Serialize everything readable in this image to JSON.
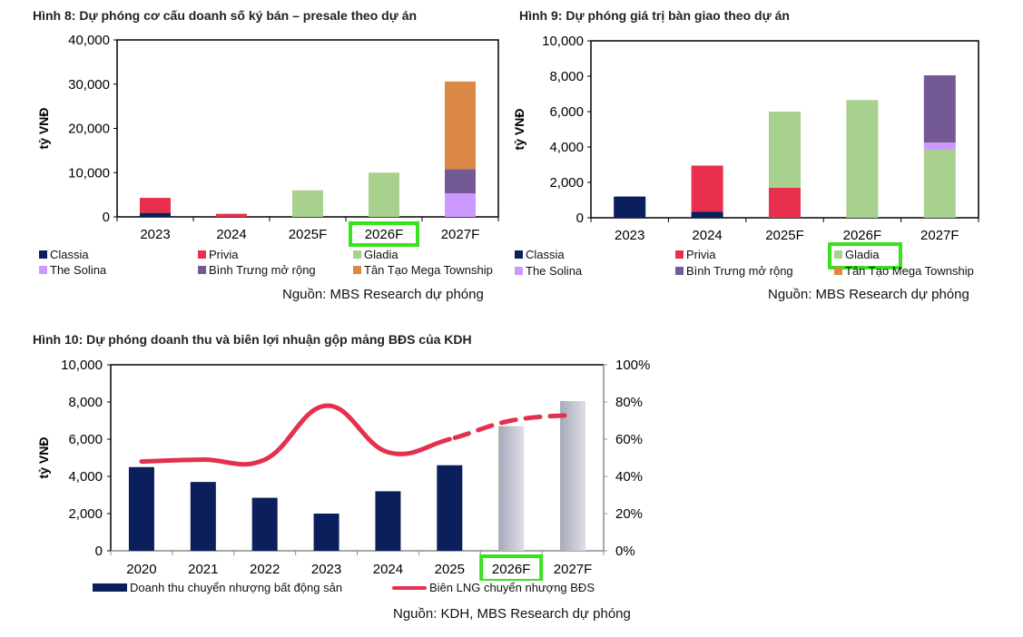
{
  "chart_data": [
    {
      "id": "fig8",
      "type": "bar",
      "stacked": true,
      "title": "Hình 8: Dự phóng cơ cấu doanh số ký bán – presale theo dự án",
      "ylabel": "tỷ VNĐ",
      "ylim": [
        0,
        40000
      ],
      "yticks": [
        "0",
        "10,000",
        "20,000",
        "30,000",
        "40,000"
      ],
      "categories": [
        "2023",
        "2024",
        "2025F",
        "2026F",
        "2027F"
      ],
      "highlighted_category": "2026F",
      "series": [
        {
          "name": "Classia",
          "color": "#0B1F5C",
          "values": [
            900,
            0,
            0,
            0,
            0
          ]
        },
        {
          "name": "Privia",
          "color": "#E8304E",
          "values": [
            3400,
            700,
            0,
            0,
            0
          ]
        },
        {
          "name": "Gladia",
          "color": "#A9D18E",
          "values": [
            0,
            0,
            6000,
            10000,
            0
          ]
        },
        {
          "name": "The Solina",
          "color": "#CC99FF",
          "values": [
            0,
            0,
            0,
            0,
            5300
          ]
        },
        {
          "name": "Bình Trưng mở rộng",
          "color": "#735A95",
          "values": [
            0,
            0,
            0,
            0,
            5500
          ]
        },
        {
          "name": "Tân Tạo Mega Township",
          "color": "#DA8844",
          "values": [
            0,
            0,
            0,
            0,
            19800
          ]
        }
      ],
      "legend": [
        "Classia",
        "Privia",
        "Gladia",
        "The Solina",
        "Bình Trưng mở rộng",
        "Tân Tạo Mega Township"
      ],
      "source": "Nguồn: MBS Research dự phóng"
    },
    {
      "id": "fig9",
      "type": "bar",
      "stacked": true,
      "title": "Hình 9: Dự phóng giá trị bàn giao theo dự án",
      "ylabel": "tỷ VNĐ",
      "ylim": [
        0,
        10000
      ],
      "yticks": [
        "0",
        "2,000",
        "4,000",
        "6,000",
        "8,000",
        "10,000"
      ],
      "categories": [
        "2023",
        "2024",
        "2025F",
        "2026F",
        "2027F"
      ],
      "highlighted_legend": "Gladia",
      "series": [
        {
          "name": "Classia",
          "color": "#0B1F5C",
          "values": [
            1200,
            350,
            0,
            0,
            0
          ]
        },
        {
          "name": "Privia",
          "color": "#E8304E",
          "values": [
            0,
            2600,
            1700,
            0,
            0
          ]
        },
        {
          "name": "Gladia",
          "color": "#A9D18E",
          "values": [
            0,
            0,
            4300,
            6650,
            3850
          ]
        },
        {
          "name": "The Solina",
          "color": "#CC99FF",
          "values": [
            0,
            0,
            0,
            0,
            400
          ]
        },
        {
          "name": "Bình Trưng mở rộng",
          "color": "#735A95",
          "values": [
            0,
            0,
            0,
            0,
            3800
          ]
        },
        {
          "name": "Tân Tạo Mega Township",
          "color": "#DA8844",
          "values": [
            0,
            0,
            0,
            0,
            0
          ]
        }
      ],
      "legend": [
        "Classia",
        "Privia",
        "Gladia",
        "The Solina",
        "Bình Trưng mở rộng",
        "Tân Tạo Mega Township"
      ],
      "source": "Nguồn: MBS Research dự phóng"
    },
    {
      "id": "fig10",
      "type": "bar+line",
      "title": "Hình 10: Dự phóng doanh thu và biên lợi nhuận gộp mảng BĐS của KDH",
      "ylabel": "tỷ VNĐ",
      "ylim": [
        0,
        10000
      ],
      "yticks": [
        "0",
        "2,000",
        "4,000",
        "6,000",
        "8,000",
        "10,000"
      ],
      "y2lim": [
        0,
        100
      ],
      "y2ticks": [
        "0%",
        "20%",
        "40%",
        "60%",
        "80%",
        "100%"
      ],
      "categories": [
        "2020",
        "2021",
        "2022",
        "2023",
        "2024",
        "2025",
        "2026F",
        "2027F"
      ],
      "highlighted_category": "2026F",
      "forecast_from_index": 6,
      "bar_series": {
        "name": "Doanh thu chuyển nhượng bất động sản",
        "color": "#0B1F5C",
        "forecast_color": "#B5B8C6",
        "values": [
          4500,
          3700,
          2850,
          2000,
          3200,
          4600,
          6700,
          8050
        ]
      },
      "line_series": {
        "name": "Biên LNG chuyển nhượng BĐS",
        "color": "#E4304F",
        "values": [
          48,
          49,
          49,
          78,
          53,
          60,
          70,
          73
        ],
        "dashed_from_index": 5
      },
      "legend": [
        "Doanh thu chuyển nhượng bất động sản",
        "Biên LNG chuyển nhượng BĐS"
      ],
      "source": "Nguồn: KDH, MBS Research dự phóng"
    }
  ]
}
